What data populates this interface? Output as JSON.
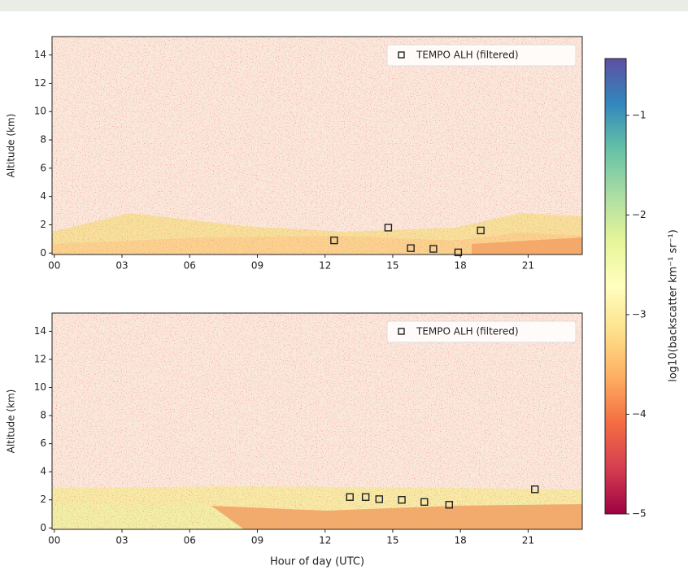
{
  "chart_data": [
    {
      "type": "scatter",
      "ylabel": "Altitude (km)",
      "xlim": [
        -0.1,
        23.4
      ],
      "ylim": [
        -0.1,
        15.3
      ],
      "xticks": [
        {
          "value": 0,
          "label": "00"
        },
        {
          "value": 3,
          "label": "03"
        },
        {
          "value": 6,
          "label": "06"
        },
        {
          "value": 9,
          "label": "09"
        },
        12,
        15,
        18,
        21
      ],
      "yticks": [
        0,
        2,
        4,
        6,
        8,
        10,
        12,
        14
      ],
      "legend": "upper right",
      "series": [
        {
          "name": "TEMPO ALH (filtered)",
          "color": "#222222",
          "marker": "square",
          "x": [
            12.4,
            14.8,
            15.8,
            16.8,
            17.9,
            18.9
          ],
          "values": [
            0.9,
            1.8,
            0.35,
            0.3,
            0.05,
            1.6
          ]
        }
      ]
    },
    {
      "type": "scatter",
      "ylabel": "Altitude (km)",
      "xlabel": "Hour of day (UTC)",
      "xlim": [
        -0.1,
        23.4
      ],
      "ylim": [
        -0.1,
        15.3
      ],
      "xticks": [
        {
          "value": 0,
          "label": "00"
        },
        {
          "value": 3,
          "label": "03"
        },
        {
          "value": 6,
          "label": "06"
        },
        {
          "value": 9,
          "label": "09"
        },
        12,
        15,
        18,
        21
      ],
      "yticks": [
        0,
        2,
        4,
        6,
        8,
        10,
        12,
        14
      ],
      "legend": "upper right",
      "series": [
        {
          "name": "TEMPO ALH (filtered)",
          "color": "#222222",
          "marker": "square",
          "x": [
            13.1,
            13.8,
            14.4,
            15.4,
            16.4,
            17.5,
            21.3
          ],
          "values": [
            2.2,
            2.2,
            2.05,
            2.0,
            1.85,
            1.65,
            2.75
          ]
        }
      ]
    }
  ],
  "colorbar": {
    "label": "log10(backscatter km⁻¹ sr⁻¹)",
    "colormap": "Spectral",
    "lim": [
      -5,
      -0.43
    ],
    "ticks": [
      {
        "value": -5,
        "label": "−5"
      },
      {
        "value": -4,
        "label": "−4"
      },
      {
        "value": -3,
        "label": "−3"
      },
      {
        "value": -2,
        "label": "−2"
      },
      {
        "value": -1,
        "label": "−1"
      }
    ]
  }
}
